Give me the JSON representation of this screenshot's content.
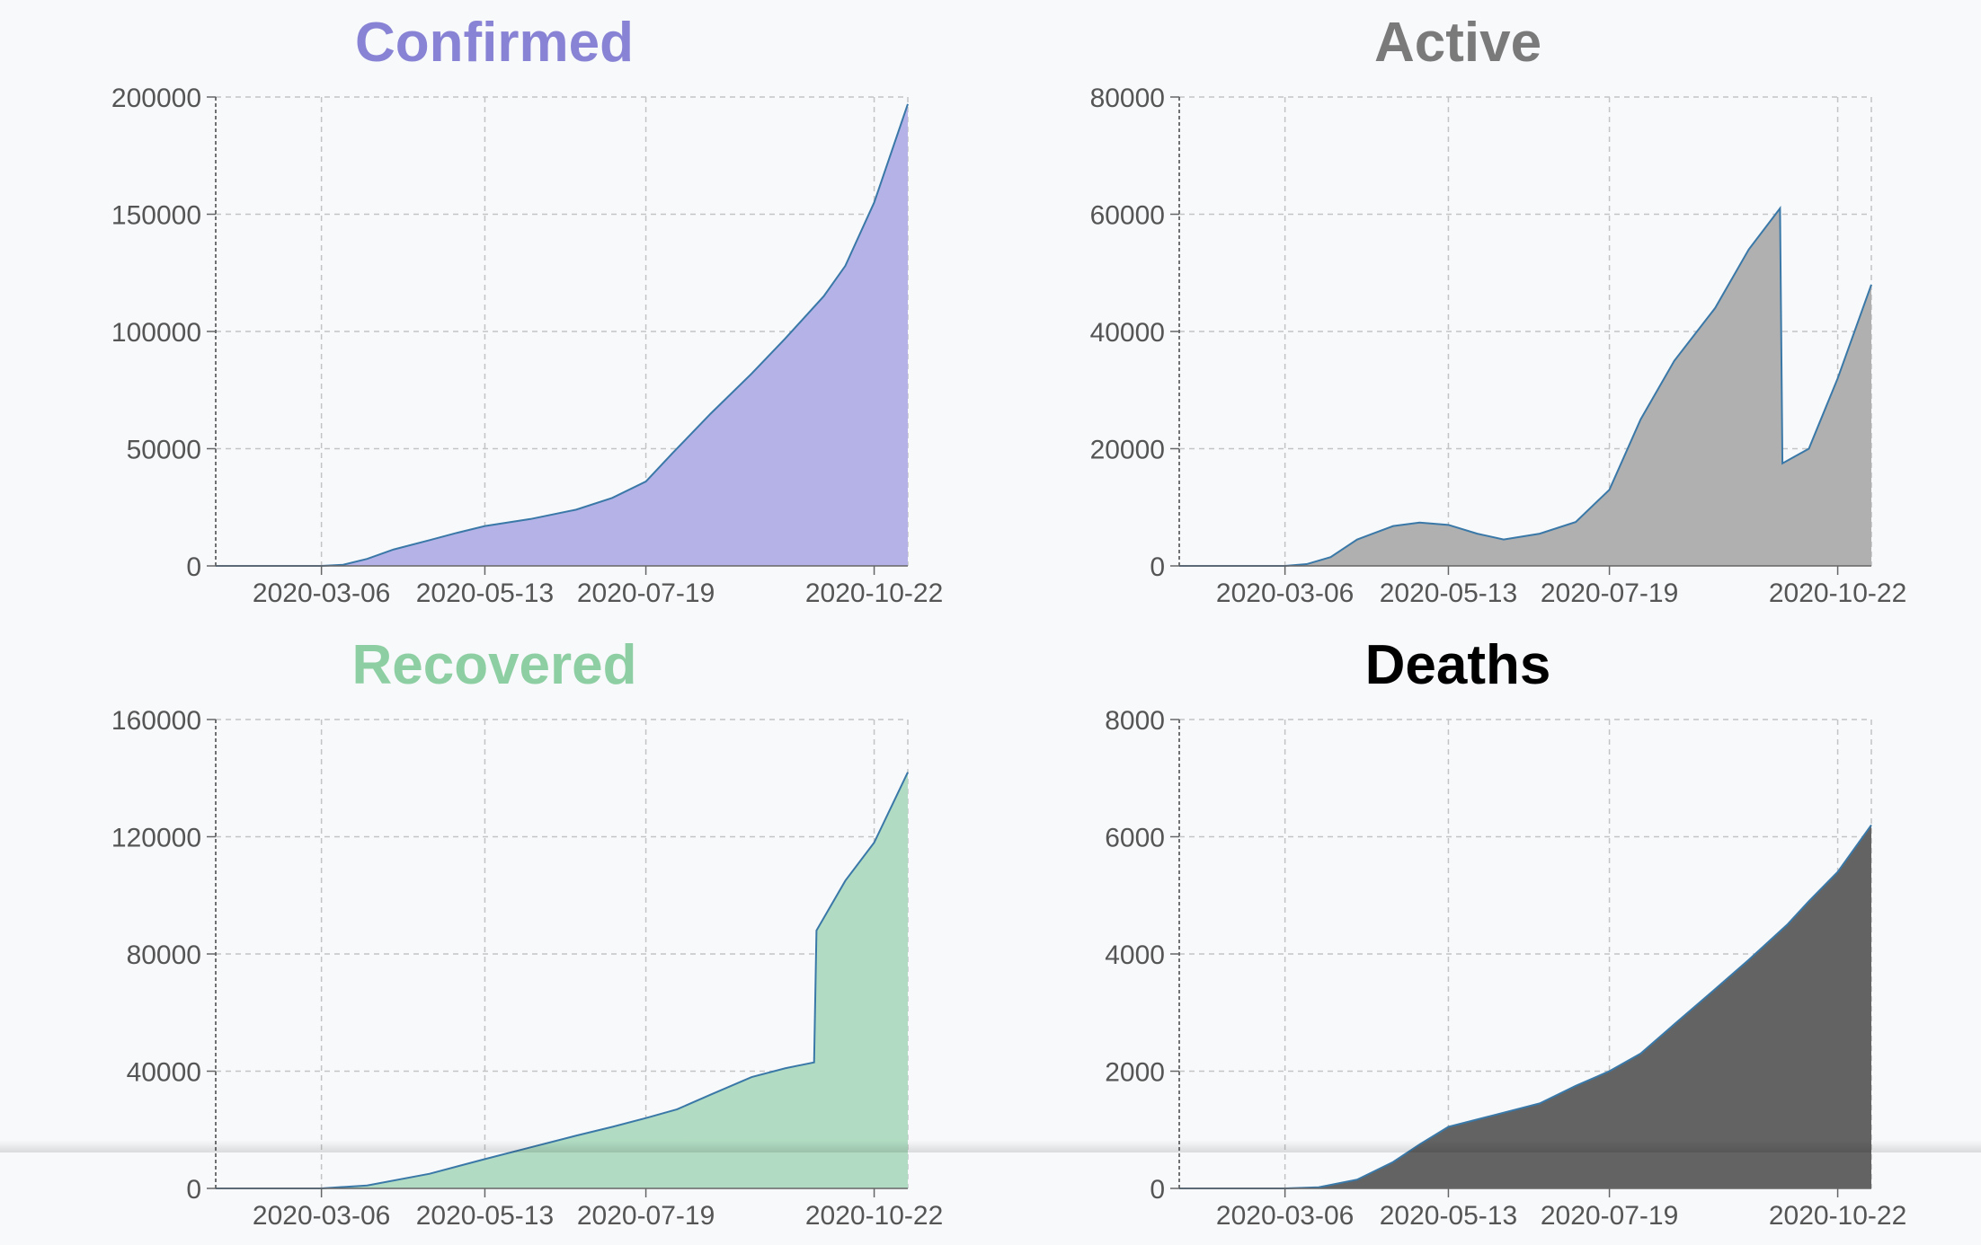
{
  "chart_data": [
    {
      "type": "area",
      "title": "Confirmed",
      "title_color": "#8883d4",
      "fill_color": "#b4b2e6",
      "line_color": "#3a78a8",
      "xlabel": "",
      "ylabel": "",
      "x_range": [
        "2020-01-22",
        "2020-11-05"
      ],
      "x_ticks": [
        "2020-03-06",
        "2020-05-13",
        "2020-07-19",
        "2020-10-22"
      ],
      "y_ticks": [
        0,
        50000,
        100000,
        150000,
        200000
      ],
      "ylim": [
        0,
        200000
      ],
      "grid": true,
      "x": [
        "2020-01-22",
        "2020-03-06",
        "2020-03-15",
        "2020-03-25",
        "2020-04-05",
        "2020-04-20",
        "2020-05-01",
        "2020-05-13",
        "2020-06-01",
        "2020-06-20",
        "2020-07-05",
        "2020-07-19",
        "2020-07-30",
        "2020-08-15",
        "2020-09-01",
        "2020-09-15",
        "2020-10-01",
        "2020-10-10",
        "2020-10-22",
        "2020-11-05"
      ],
      "values": [
        0,
        0,
        500,
        3000,
        7000,
        11000,
        14000,
        17000,
        20000,
        24000,
        29000,
        36000,
        48000,
        65000,
        82000,
        97000,
        115000,
        128000,
        155000,
        197000
      ]
    },
    {
      "type": "area",
      "title": "Active",
      "title_color": "#7a7a7a",
      "fill_color": "#b0b0b0",
      "line_color": "#3a78a8",
      "xlabel": "",
      "ylabel": "",
      "x_range": [
        "2020-01-22",
        "2020-11-05"
      ],
      "x_ticks": [
        "2020-03-06",
        "2020-05-13",
        "2020-07-19",
        "2020-10-22"
      ],
      "y_ticks": [
        0,
        20000,
        40000,
        60000,
        80000
      ],
      "ylim": [
        0,
        80000
      ],
      "grid": true,
      "x": [
        "2020-01-22",
        "2020-03-06",
        "2020-03-15",
        "2020-03-25",
        "2020-04-05",
        "2020-04-20",
        "2020-05-01",
        "2020-05-13",
        "2020-05-25",
        "2020-06-05",
        "2020-06-20",
        "2020-07-05",
        "2020-07-19",
        "2020-08-01",
        "2020-08-15",
        "2020-09-01",
        "2020-09-15",
        "2020-09-28",
        "2020-09-29",
        "2020-10-10",
        "2020-10-22",
        "2020-11-05"
      ],
      "values": [
        0,
        0,
        300,
        1500,
        4500,
        6800,
        7400,
        7000,
        5500,
        4500,
        5500,
        7500,
        13000,
        25000,
        35000,
        44000,
        54000,
        61000,
        17500,
        20000,
        32000,
        48000
      ]
    },
    {
      "type": "area",
      "title": "Recovered",
      "title_color": "#8dcfa2",
      "fill_color": "#b1dcc3",
      "line_color": "#3a78a8",
      "xlabel": "",
      "ylabel": "",
      "x_range": [
        "2020-01-22",
        "2020-11-05"
      ],
      "x_ticks": [
        "2020-03-06",
        "2020-05-13",
        "2020-07-19",
        "2020-10-22"
      ],
      "y_ticks": [
        0,
        40000,
        80000,
        120000,
        160000
      ],
      "ylim": [
        0,
        160000
      ],
      "grid": true,
      "x": [
        "2020-01-22",
        "2020-03-06",
        "2020-03-25",
        "2020-04-20",
        "2020-05-13",
        "2020-06-01",
        "2020-06-20",
        "2020-07-05",
        "2020-07-19",
        "2020-08-01",
        "2020-08-15",
        "2020-09-01",
        "2020-09-15",
        "2020-09-27",
        "2020-09-28",
        "2020-10-10",
        "2020-10-22",
        "2020-11-05"
      ],
      "values": [
        0,
        0,
        1000,
        5000,
        10000,
        14000,
        18000,
        21000,
        24000,
        27000,
        32000,
        38000,
        41000,
        43000,
        88000,
        105000,
        118000,
        142000
      ]
    },
    {
      "type": "area",
      "title": "Deaths",
      "title_color": "#000000",
      "fill_color": "#636363",
      "line_color": "#3a78a8",
      "xlabel": "",
      "ylabel": "",
      "x_range": [
        "2020-01-22",
        "2020-11-05"
      ],
      "x_ticks": [
        "2020-03-06",
        "2020-05-13",
        "2020-07-19",
        "2020-10-22"
      ],
      "y_ticks": [
        0,
        2000,
        4000,
        6000,
        8000
      ],
      "ylim": [
        0,
        8000
      ],
      "grid": true,
      "x": [
        "2020-01-22",
        "2020-03-06",
        "2020-03-20",
        "2020-04-05",
        "2020-04-20",
        "2020-05-01",
        "2020-05-13",
        "2020-06-01",
        "2020-06-20",
        "2020-07-05",
        "2020-07-19",
        "2020-08-01",
        "2020-08-15",
        "2020-09-01",
        "2020-09-15",
        "2020-10-01",
        "2020-10-10",
        "2020-10-22",
        "2020-11-05"
      ],
      "values": [
        0,
        0,
        20,
        150,
        450,
        750,
        1050,
        1250,
        1450,
        1750,
        2000,
        2300,
        2800,
        3400,
        3900,
        4500,
        4900,
        5400,
        6200
      ]
    }
  ]
}
